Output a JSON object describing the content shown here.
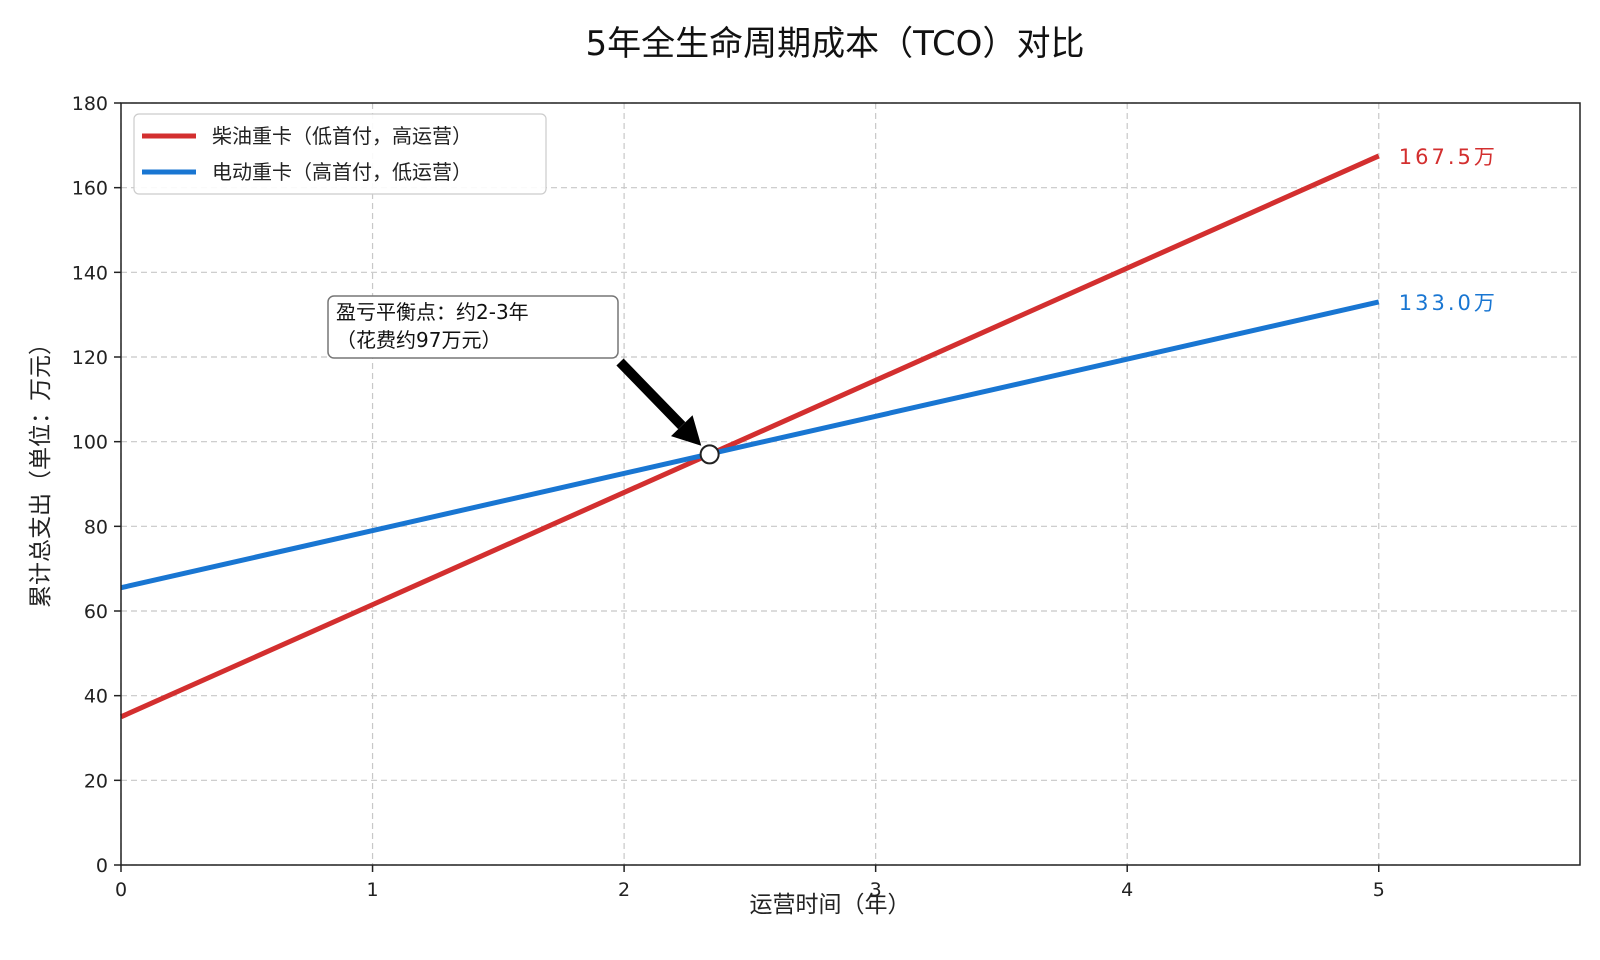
{
  "chart_data": {
    "type": "line",
    "title": "5年全生命周期成本（TCO）对比",
    "xlabel": "运营时间（年）",
    "ylabel": "累计总支出（单位：万元）",
    "xlim": [
      0,
      5.8
    ],
    "ylim": [
      0,
      180
    ],
    "xticks": [
      0,
      1,
      2,
      3,
      4,
      5
    ],
    "yticks": [
      0,
      20,
      40,
      60,
      80,
      100,
      120,
      140,
      160,
      180
    ],
    "grid": true,
    "legend_position": "top-left",
    "series": [
      {
        "name": "柴油重卡（低首付，高运营）",
        "color": "#d32f2f",
        "x": [
          0,
          5
        ],
        "values": [
          35,
          167.5
        ],
        "end_label": "167.5万"
      },
      {
        "name": "电动重卡（高首付，低运营）",
        "color": "#1976d2",
        "x": [
          0,
          5
        ],
        "values": [
          65.5,
          133.0
        ],
        "end_label": "133.0万"
      }
    ],
    "annotation": {
      "text_line1": "盈亏平衡点：约2-3年",
      "text_line2": "（花费约97万元）",
      "point": [
        2.34,
        97
      ],
      "text_anchor": [
        1.15,
        125
      ]
    }
  }
}
